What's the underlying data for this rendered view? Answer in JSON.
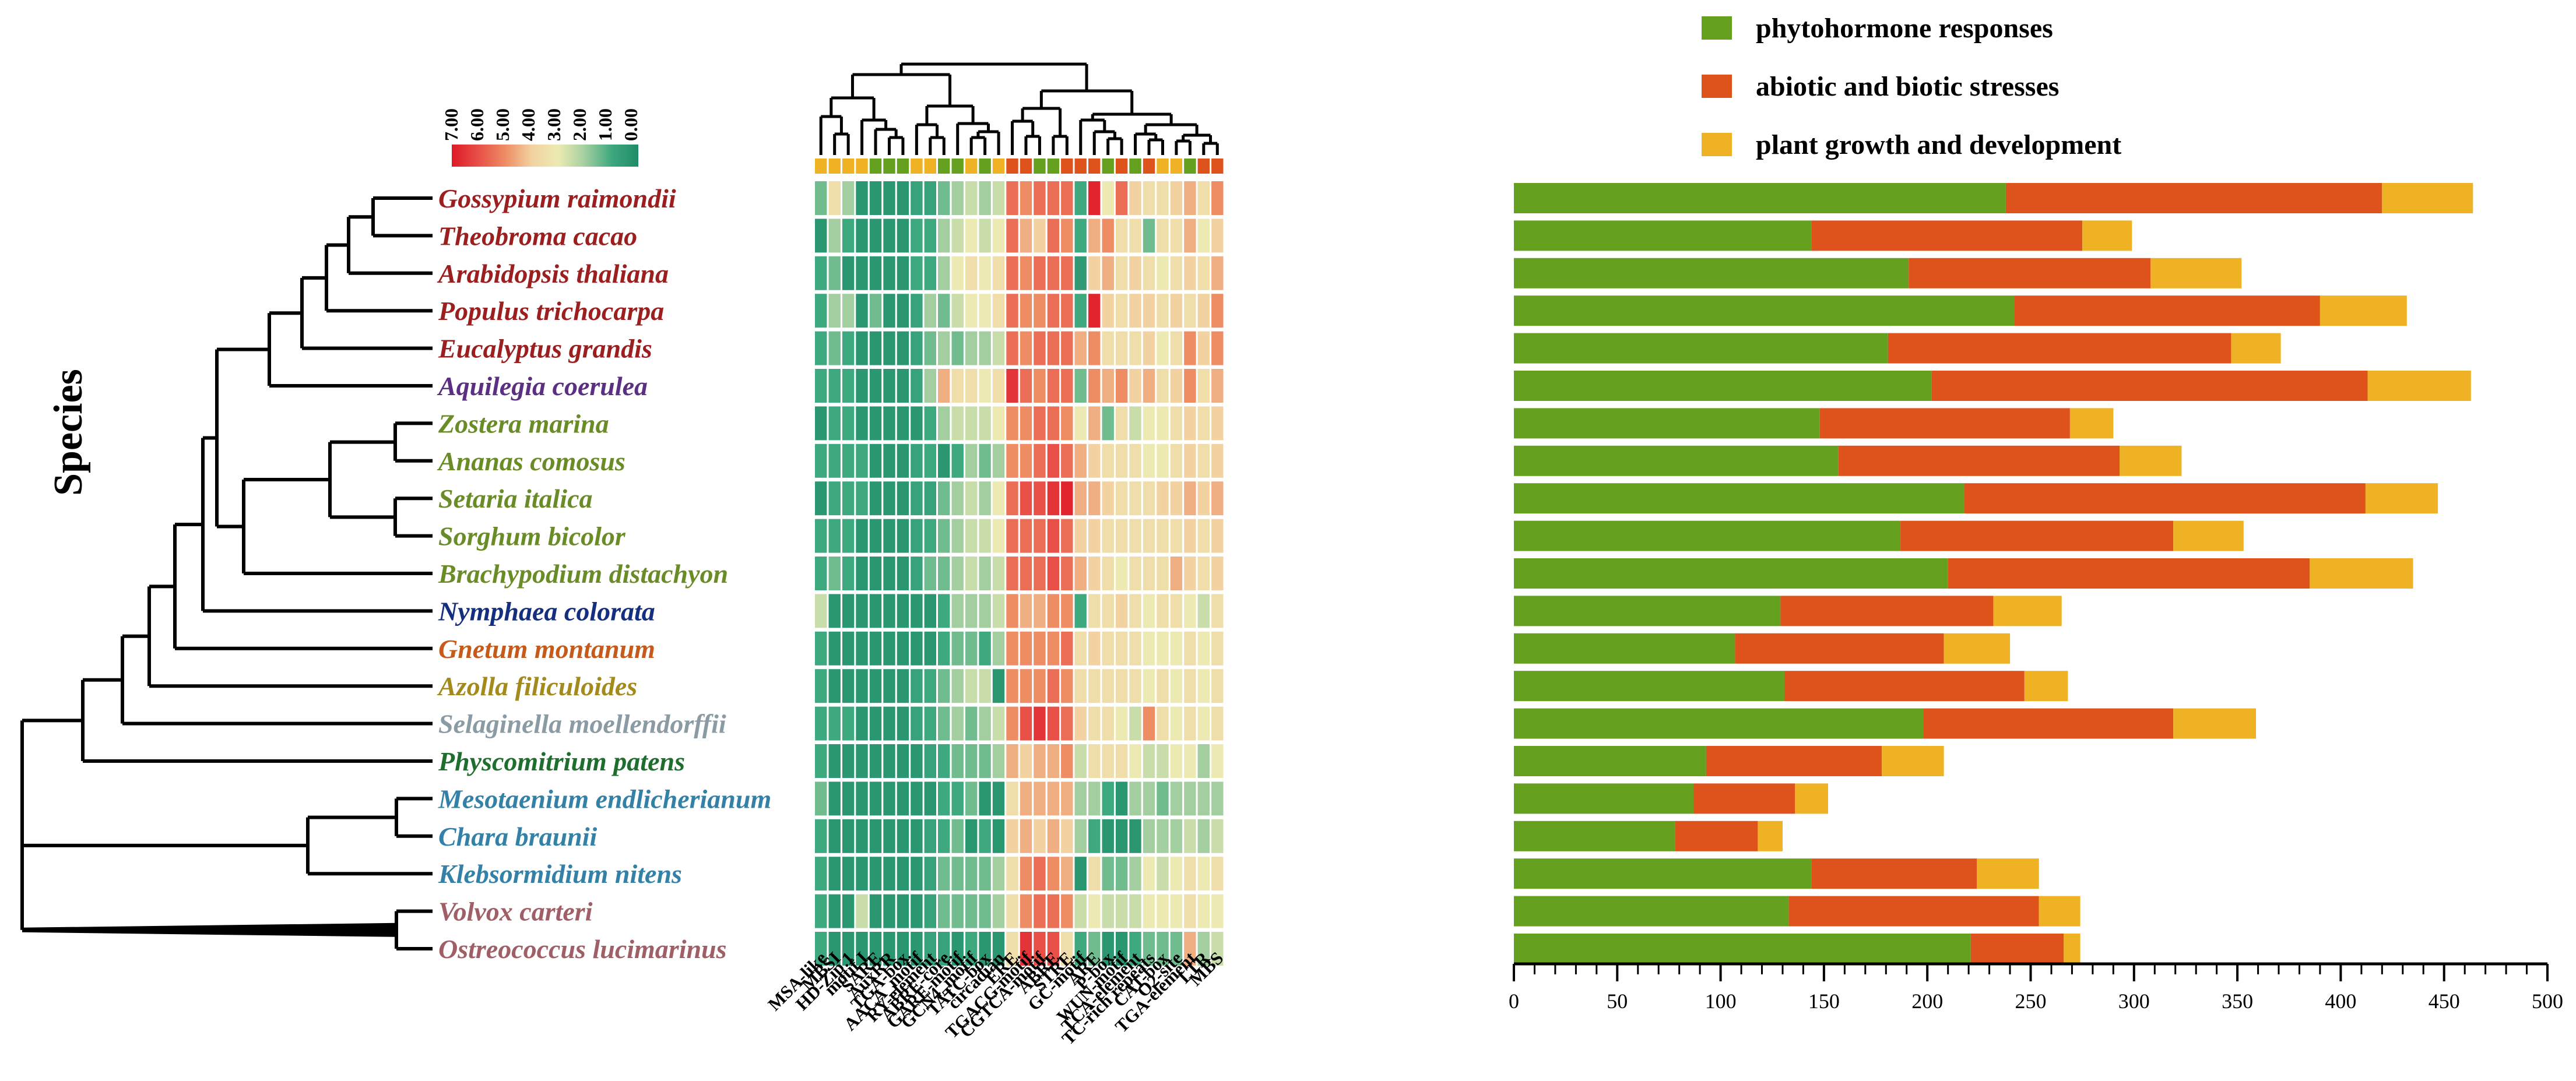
{
  "chart_data": {
    "type": "bar",
    "subtype": "stacked horizontal bar with phylogenetic tree and heatmap",
    "ylabel": "Species",
    "xlim": [
      0,
      500
    ],
    "xticks": [
      0,
      50,
      100,
      150,
      200,
      250,
      300,
      350,
      400,
      450,
      500
    ],
    "legend": {
      "placement": "top-right",
      "entries": [
        {
          "name": "phytohormone responses",
          "color": "#65a01f"
        },
        {
          "name": "abiotic and biotic stresses",
          "color": "#de531b"
        },
        {
          "name": "plant growth and development",
          "color": "#eeb224"
        }
      ]
    },
    "categories": [
      {
        "name": "Gossypium raimondii",
        "color": "#9c1f20"
      },
      {
        "name": "Theobroma cacao",
        "color": "#9c1f20"
      },
      {
        "name": "Arabidopsis thaliana",
        "color": "#9c1f20"
      },
      {
        "name": "Populus trichocarpa",
        "color": "#9c1f20"
      },
      {
        "name": "Eucalyptus grandis",
        "color": "#9c1f20"
      },
      {
        "name": "Aquilegia coerulea",
        "color": "#5b2f82"
      },
      {
        "name": "Zostera marina",
        "color": "#6a8c27"
      },
      {
        "name": "Ananas comosus",
        "color": "#6a8c27"
      },
      {
        "name": "Setaria italica",
        "color": "#6a8c27"
      },
      {
        "name": "Sorghum bicolor",
        "color": "#6a8c27"
      },
      {
        "name": "Brachypodium distachyon",
        "color": "#6a8c27"
      },
      {
        "name": "Nymphaea colorata",
        "color": "#152f80"
      },
      {
        "name": "Gnetum montanum",
        "color": "#c55a1a"
      },
      {
        "name": "Azolla filiculoides",
        "color": "#a38a1c"
      },
      {
        "name": "Selaginella moellendorffii",
        "color": "#8a9ba3"
      },
      {
        "name": "Physcomitrium patens",
        "color": "#1e6e2d"
      },
      {
        "name": "Mesotaenium endlicherianum",
        "color": "#3481a8"
      },
      {
        "name": "Chara braunii",
        "color": "#3481a8"
      },
      {
        "name": "Klebsormidium nitens",
        "color": "#3481a8"
      },
      {
        "name": "Volvox carteri",
        "color": "#a05f66"
      },
      {
        "name": "Ostreococcus lucimarinus",
        "color": "#a05f66"
      }
    ],
    "series": [
      {
        "name": "phytohormone responses",
        "values": [
          238,
          144,
          191,
          242,
          181,
          202,
          148,
          157,
          218,
          187,
          210,
          129,
          107,
          131,
          198,
          93,
          87,
          78,
          144,
          133,
          221
        ]
      },
      {
        "name": "abiotic and biotic stresses",
        "values": [
          182,
          131,
          117,
          148,
          166,
          211,
          121,
          136,
          194,
          132,
          175,
          103,
          101,
          116,
          121,
          85,
          49,
          40,
          80,
          121,
          45
        ]
      },
      {
        "name": "plant growth and development",
        "values": [
          44,
          24,
          44,
          42,
          24,
          50,
          21,
          30,
          35,
          34,
          50,
          33,
          32,
          21,
          40,
          30,
          16,
          12,
          30,
          20,
          8
        ]
      }
    ],
    "heatmap": {
      "scale_labels": [
        "7.00",
        "6.00",
        "5.00",
        "4.00",
        "3.00",
        "2.00",
        "1.00",
        "0.00"
      ],
      "columns": [
        "MSA-like",
        "MBSI",
        "HD-Zip 1",
        "motif I",
        "SARE",
        "AuxRR",
        "TGA-box",
        "AACA_motif",
        "RY-element",
        "ABRE-core",
        "GARE-motif",
        "GCN4_motif",
        "TATC-box",
        "circadian",
        "ERE",
        "TGACG-motif",
        "CGTCA-motif",
        "ABRE",
        "STRE",
        "GC-motif",
        "ARE",
        "P-box",
        "WUN-motif",
        "TCA-element",
        "TC-rich repeats",
        "CAT-box",
        "O2-site",
        "TGA-element",
        "LTR",
        "MBS"
      ],
      "column_categories": [
        3,
        3,
        3,
        3,
        1,
        1,
        1,
        3,
        3,
        1,
        1,
        3,
        1,
        3,
        2,
        2,
        1,
        1,
        2,
        2,
        2,
        1,
        2,
        1,
        2,
        3,
        3,
        1,
        2,
        2
      ],
      "values": [
        [
          1.5,
          3.5,
          2.0,
          0.4,
          0.4,
          0.4,
          0.4,
          0.8,
          0.8,
          1.5,
          2.0,
          2.5,
          2.0,
          2.5,
          5.5,
          5.0,
          5.5,
          5.5,
          5.5,
          1.0,
          6.8,
          3.0,
          5.5,
          4.0,
          3.5,
          3.5,
          4.0,
          4.5,
          3.5,
          5.0
        ],
        [
          0.4,
          2.0,
          1.0,
          0.4,
          0.4,
          0.4,
          0.4,
          1.0,
          1.0,
          2.0,
          2.5,
          3.0,
          2.5,
          3.0,
          5.5,
          4.5,
          4.0,
          5.5,
          5.0,
          1.0,
          4.5,
          5.0,
          3.5,
          3.5,
          1.5,
          3.5,
          3.5,
          4.5,
          3.0,
          4.0
        ],
        [
          1.0,
          1.5,
          0.4,
          0.4,
          0.4,
          0.4,
          0.4,
          1.0,
          1.0,
          2.0,
          3.0,
          3.5,
          3.0,
          3.5,
          5.5,
          5.0,
          5.5,
          5.5,
          5.5,
          0.5,
          4.0,
          4.5,
          3.5,
          4.0,
          3.5,
          3.0,
          3.5,
          4.0,
          3.5,
          4.5
        ],
        [
          1.0,
          2.0,
          2.0,
          0.4,
          1.5,
          0.4,
          0.4,
          0.8,
          2.0,
          1.5,
          2.5,
          3.0,
          3.0,
          3.5,
          5.5,
          5.0,
          5.0,
          5.5,
          5.5,
          1.0,
          6.8,
          4.0,
          3.5,
          4.0,
          4.0,
          3.5,
          4.0,
          3.5,
          4.0,
          5.0
        ],
        [
          1.0,
          1.5,
          1.0,
          0.4,
          0.4,
          0.4,
          0.4,
          0.8,
          1.5,
          2.0,
          1.5,
          2.0,
          2.0,
          2.5,
          5.5,
          5.0,
          5.5,
          5.5,
          5.5,
          4.5,
          5.0,
          3.5,
          3.5,
          3.5,
          4.0,
          3.0,
          3.5,
          5.0,
          4.0,
          5.0
        ],
        [
          1.0,
          1.0,
          1.0,
          0.4,
          0.4,
          0.4,
          0.4,
          0.8,
          2.0,
          4.5,
          3.5,
          3.5,
          3.0,
          3.5,
          6.5,
          5.5,
          5.0,
          5.5,
          5.5,
          1.5,
          5.0,
          4.5,
          5.0,
          4.0,
          4.5,
          3.5,
          4.0,
          5.0,
          3.5,
          4.5
        ],
        [
          0.4,
          1.0,
          1.0,
          0.4,
          0.4,
          0.4,
          0.4,
          0.4,
          1.0,
          2.0,
          2.5,
          2.5,
          2.5,
          3.0,
          5.0,
          5.0,
          5.5,
          5.5,
          5.0,
          3.0,
          4.5,
          1.5,
          3.5,
          2.5,
          3.0,
          3.0,
          3.5,
          4.0,
          3.5,
          4.0
        ],
        [
          1.0,
          1.0,
          1.0,
          1.0,
          0.4,
          0.4,
          0.4,
          0.8,
          1.0,
          0.4,
          1.0,
          2.0,
          1.5,
          2.0,
          5.0,
          5.0,
          5.5,
          6.0,
          5.5,
          4.5,
          4.0,
          3.5,
          3.5,
          3.5,
          3.0,
          3.0,
          3.5,
          4.0,
          3.5,
          4.0
        ],
        [
          0.4,
          1.0,
          1.0,
          1.0,
          0.4,
          0.4,
          0.4,
          0.8,
          0.8,
          1.5,
          2.0,
          2.5,
          2.0,
          3.0,
          5.5,
          6.0,
          6.0,
          6.5,
          6.8,
          4.5,
          4.5,
          4.0,
          3.5,
          3.5,
          3.5,
          4.0,
          4.0,
          4.5,
          4.0,
          4.5
        ],
        [
          1.0,
          1.0,
          1.0,
          0.4,
          0.4,
          0.4,
          0.4,
          0.8,
          1.0,
          1.5,
          2.0,
          2.5,
          2.5,
          3.0,
          5.5,
          5.5,
          5.5,
          6.0,
          5.5,
          4.0,
          4.0,
          3.5,
          3.5,
          3.5,
          3.5,
          3.5,
          3.5,
          4.0,
          3.5,
          4.0
        ],
        [
          1.0,
          1.5,
          1.0,
          0.4,
          0.4,
          0.4,
          0.4,
          0.8,
          1.5,
          1.5,
          2.0,
          2.5,
          2.0,
          2.5,
          5.5,
          5.5,
          5.5,
          6.0,
          5.5,
          4.5,
          4.0,
          3.5,
          3.0,
          3.5,
          3.5,
          3.5,
          4.5,
          4.0,
          3.5,
          4.0
        ],
        [
          2.5,
          0.4,
          0.4,
          0.4,
          0.4,
          0.4,
          0.4,
          0.4,
          0.4,
          1.0,
          2.0,
          2.0,
          2.0,
          2.5,
          5.0,
          4.5,
          4.5,
          5.0,
          5.0,
          1.0,
          3.5,
          3.5,
          4.0,
          3.5,
          3.0,
          3.5,
          3.5,
          3.0,
          2.5,
          3.5
        ],
        [
          1.0,
          0.4,
          0.4,
          0.4,
          0.4,
          0.4,
          0.4,
          0.4,
          0.4,
          1.0,
          1.5,
          1.5,
          1.0,
          2.0,
          5.0,
          5.0,
          5.0,
          5.0,
          5.5,
          3.5,
          4.0,
          3.5,
          3.5,
          3.5,
          3.0,
          3.0,
          3.0,
          3.5,
          3.0,
          3.5
        ],
        [
          1.0,
          0.4,
          0.4,
          0.4,
          0.4,
          0.4,
          0.4,
          0.8,
          1.0,
          1.5,
          2.0,
          2.5,
          2.5,
          0.4,
          5.0,
          5.0,
          5.0,
          5.5,
          5.0,
          3.5,
          3.5,
          3.5,
          3.5,
          3.5,
          3.0,
          3.5,
          3.0,
          3.5,
          3.0,
          3.5
        ],
        [
          1.0,
          1.0,
          1.0,
          0.4,
          0.4,
          0.4,
          0.4,
          0.8,
          1.0,
          1.5,
          2.0,
          1.5,
          2.0,
          2.5,
          5.0,
          6.0,
          6.5,
          6.0,
          5.5,
          4.0,
          3.5,
          3.5,
          3.0,
          2.5,
          5.0,
          3.5,
          3.0,
          3.5,
          3.0,
          3.5
        ],
        [
          1.0,
          0.4,
          0.4,
          0.4,
          0.4,
          0.4,
          0.4,
          0.4,
          0.8,
          1.0,
          1.5,
          1.5,
          1.5,
          2.0,
          4.5,
          4.0,
          4.5,
          4.5,
          5.0,
          2.5,
          3.5,
          3.5,
          3.5,
          3.0,
          2.5,
          2.5,
          3.0,
          3.0,
          2.0,
          3.0
        ],
        [
          1.5,
          0.4,
          0.4,
          0.4,
          0.4,
          0.4,
          0.4,
          0.4,
          0.4,
          1.0,
          1.0,
          1.5,
          0.4,
          0.4,
          3.5,
          4.5,
          4.5,
          4.5,
          4.5,
          2.0,
          2.0,
          1.0,
          0.4,
          2.0,
          2.0,
          1.5,
          2.0,
          2.0,
          2.0,
          2.0
        ],
        [
          1.0,
          0.4,
          0.4,
          0.4,
          0.4,
          0.4,
          0.4,
          0.4,
          0.8,
          1.0,
          1.5,
          0.4,
          1.0,
          0.4,
          4.0,
          4.5,
          4.0,
          4.5,
          4.0,
          2.0,
          1.0,
          0.4,
          0.4,
          0.4,
          2.0,
          2.0,
          2.0,
          2.5,
          2.0,
          2.5
        ],
        [
          1.0,
          0.4,
          0.4,
          0.4,
          0.4,
          0.4,
          0.4,
          0.4,
          0.8,
          1.5,
          1.5,
          1.5,
          1.5,
          2.0,
          3.5,
          5.0,
          5.5,
          5.0,
          4.5,
          0.4,
          3.5,
          1.5,
          1.5,
          2.0,
          3.0,
          2.5,
          3.0,
          3.5,
          3.0,
          3.5
        ],
        [
          1.0,
          0.4,
          0.4,
          2.5,
          0.4,
          0.4,
          0.4,
          0.4,
          0.8,
          1.5,
          1.5,
          1.5,
          1.5,
          2.0,
          3.5,
          5.0,
          5.5,
          5.5,
          5.0,
          2.5,
          3.0,
          2.5,
          2.5,
          2.5,
          3.0,
          3.0,
          3.0,
          3.5,
          3.0,
          3.0
        ],
        [
          1.0,
          0.4,
          0.4,
          0.4,
          0.4,
          0.4,
          0.4,
          0.4,
          0.8,
          0.8,
          0.4,
          1.0,
          0.4,
          0.4,
          3.5,
          6.5,
          6.0,
          6.0,
          3.5,
          1.0,
          1.5,
          0.4,
          0.4,
          1.0,
          1.5,
          1.5,
          1.5,
          4.5,
          2.0,
          2.5
        ]
      ]
    }
  }
}
